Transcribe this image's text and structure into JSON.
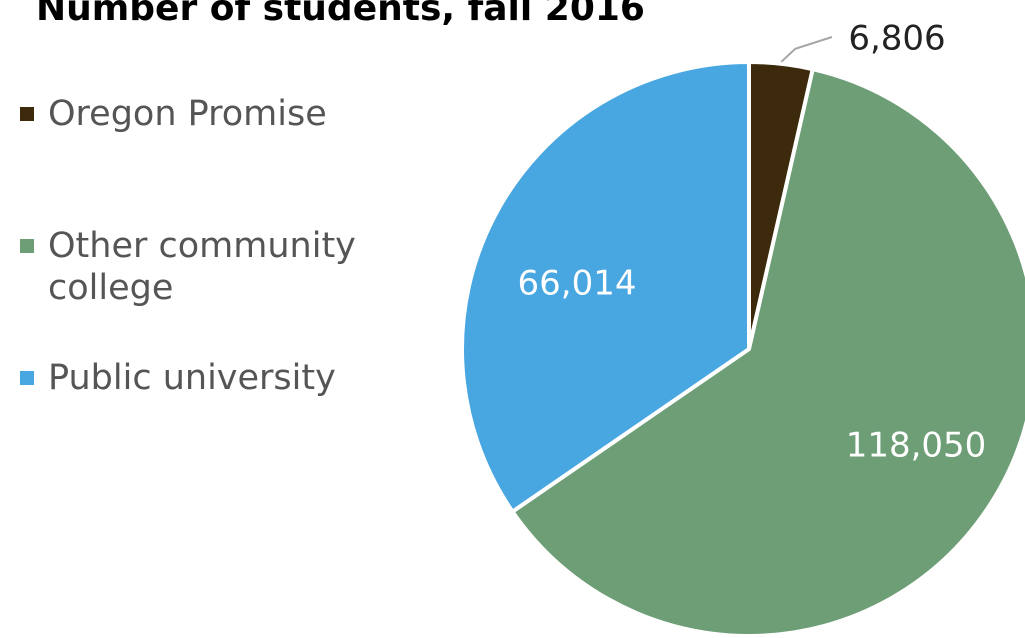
{
  "chart_data": {
    "type": "pie",
    "title": "Number of students, fall 2016",
    "categories": [
      "Oregon Promise",
      "Other community college",
      "Public university"
    ],
    "values": [
      6806,
      118050,
      66014
    ],
    "value_labels": [
      "6,806",
      "118,050",
      "66,014"
    ],
    "colors": [
      "#3d2a0c",
      "#6d9e76",
      "#48a6e0"
    ],
    "label_colors": [
      "#222222",
      "#ffffff",
      "#ffffff"
    ],
    "start_angle_deg": 0,
    "direction": "clockwise",
    "legend_position": "left"
  }
}
